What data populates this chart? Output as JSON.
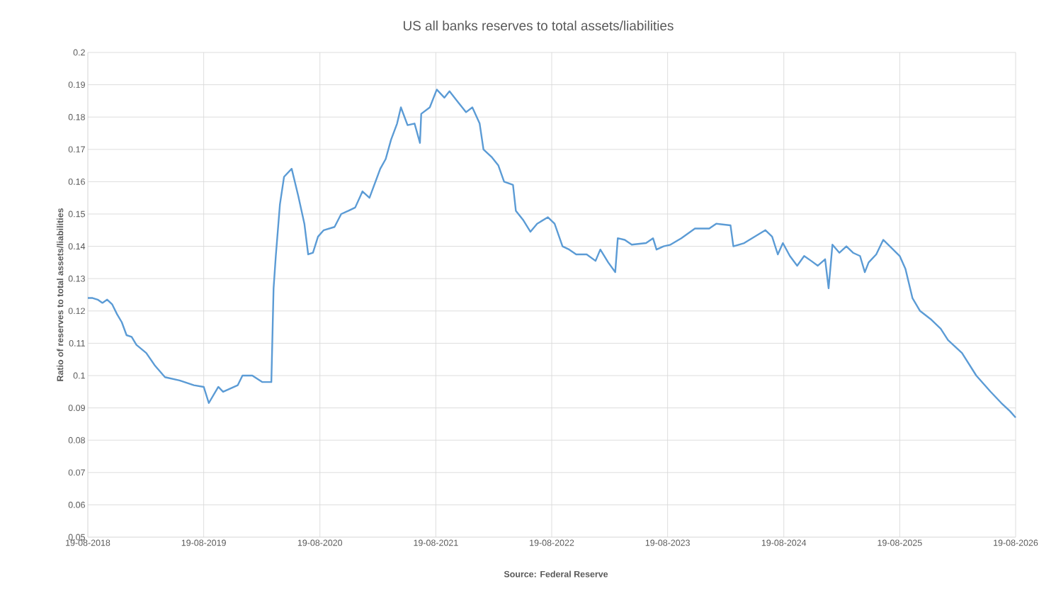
{
  "chart_data": {
    "type": "line",
    "title": "US all banks reserves to total assets/liabilities",
    "ylabel": "Ratio of reserves to total assets/liabilities",
    "annotations": [
      "Source: Federal Reserve"
    ],
    "x": [
      "2018-08-19",
      "2018-09-03",
      "2018-09-19",
      "2018-10-04",
      "2018-10-19",
      "2018-11-04",
      "2018-11-19",
      "2018-12-04",
      "2018-12-19",
      "2019-01-04",
      "2019-01-19",
      "2019-02-19",
      "2019-03-19",
      "2019-04-19",
      "2019-06-04",
      "2019-07-19",
      "2019-08-19",
      "2019-09-04",
      "2019-10-04",
      "2019-10-19",
      "2019-12-04",
      "2019-12-19",
      "2020-01-19",
      "2020-02-19",
      "2020-03-19",
      "2020-03-26",
      "2020-04-02",
      "2020-04-15",
      "2020-04-28",
      "2020-05-22",
      "2020-06-12",
      "2020-07-01",
      "2020-07-13",
      "2020-07-28",
      "2020-08-13",
      "2020-08-31",
      "2020-10-04",
      "2020-10-25",
      "2020-11-17",
      "2020-12-08",
      "2020-12-31",
      "2021-01-22",
      "2021-02-25",
      "2021-03-14",
      "2021-03-31",
      "2021-04-19",
      "2021-05-01",
      "2021-05-22",
      "2021-06-13",
      "2021-06-30",
      "2021-07-04",
      "2021-07-31",
      "2021-08-22",
      "2021-09-15",
      "2021-10-01",
      "2021-10-25",
      "2021-11-22",
      "2021-12-12",
      "2022-01-04",
      "2022-01-16",
      "2022-02-12",
      "2022-03-04",
      "2022-03-22",
      "2022-04-19",
      "2022-04-28",
      "2022-05-22",
      "2022-06-13",
      "2022-07-04",
      "2022-08-07",
      "2022-08-28",
      "2022-09-22",
      "2022-10-13",
      "2022-11-04",
      "2022-12-07",
      "2023-01-04",
      "2023-01-19",
      "2023-02-13",
      "2023-03-07",
      "2023-03-15",
      "2023-04-06",
      "2023-04-28",
      "2023-06-12",
      "2023-07-04",
      "2023-07-15",
      "2023-08-06",
      "2023-08-28",
      "2023-10-01",
      "2023-11-13",
      "2023-12-28",
      "2024-01-19",
      "2024-03-04",
      "2024-03-13",
      "2024-04-16",
      "2024-05-19",
      "2024-06-22",
      "2024-07-13",
      "2024-07-31",
      "2024-08-16",
      "2024-09-07",
      "2024-09-30",
      "2024-10-22",
      "2024-11-13",
      "2024-12-04",
      "2024-12-27",
      "2025-01-07",
      "2025-01-19",
      "2025-02-10",
      "2025-03-04",
      "2025-03-25",
      "2025-04-16",
      "2025-05-01",
      "2025-05-13",
      "2025-06-06",
      "2025-06-28",
      "2025-07-19",
      "2025-08-19",
      "2025-09-06",
      "2025-09-28",
      "2025-10-22",
      "2025-11-24",
      "2025-12-26",
      "2026-01-18",
      "2026-03-03",
      "2026-04-17",
      "2026-06-01",
      "2026-07-05",
      "2026-08-01",
      "2026-08-19"
    ],
    "series": [
      {
        "color": "#5b9bd5",
        "values": [
          0.124,
          0.124,
          0.1235,
          0.1225,
          0.1235,
          0.122,
          0.119,
          0.1165,
          0.1125,
          0.112,
          0.1095,
          0.107,
          0.103,
          0.0995,
          0.0985,
          0.097,
          0.0965,
          0.0915,
          0.0965,
          0.095,
          0.097,
          0.1,
          0.1,
          0.098,
          0.098,
          0.127,
          0.137,
          0.153,
          0.1615,
          0.164,
          0.1555,
          0.147,
          0.1375,
          0.138,
          0.143,
          0.145,
          0.146,
          0.15,
          0.151,
          0.152,
          0.157,
          0.155,
          0.164,
          0.167,
          0.173,
          0.178,
          0.183,
          0.1775,
          0.178,
          0.172,
          0.181,
          0.183,
          0.1885,
          0.186,
          0.188,
          0.185,
          0.1815,
          0.183,
          0.178,
          0.17,
          0.1675,
          0.165,
          0.16,
          0.159,
          0.151,
          0.148,
          0.1445,
          0.147,
          0.149,
          0.147,
          0.14,
          0.139,
          0.1375,
          0.1375,
          0.1355,
          0.139,
          0.135,
          0.132,
          0.1425,
          0.142,
          0.1405,
          0.141,
          0.1425,
          0.139,
          0.14,
          0.1405,
          0.1425,
          0.1455,
          0.1455,
          0.147,
          0.1465,
          0.14,
          0.141,
          0.143,
          0.145,
          0.143,
          0.1375,
          0.141,
          0.137,
          0.134,
          0.137,
          0.1355,
          0.134,
          0.136,
          0.127,
          0.1405,
          0.138,
          0.14,
          0.138,
          0.137,
          0.132,
          0.135,
          0.1375,
          0.142,
          0.14,
          0.137,
          0.133,
          0.124,
          0.12,
          0.1175,
          0.1145,
          0.111,
          0.107,
          0.1,
          0.095,
          0.0915,
          0.089,
          0.087
        ]
      }
    ],
    "xlim": [
      "2018-08-19",
      "2026-08-19"
    ],
    "xticks": [
      {
        "value": "2018-08-19",
        "label": "19-08-2018"
      },
      {
        "value": "2019-08-19",
        "label": "19-08-2019"
      },
      {
        "value": "2020-08-19",
        "label": "19-08-2020"
      },
      {
        "value": "2021-08-19",
        "label": "19-08-2021"
      },
      {
        "value": "2022-08-19",
        "label": "19-08-2022"
      },
      {
        "value": "2023-08-19",
        "label": "19-08-2023"
      },
      {
        "value": "2024-08-19",
        "label": "19-08-2024"
      },
      {
        "value": "2025-08-19",
        "label": "19-08-2025"
      },
      {
        "value": "2026-08-19",
        "label": "19-08-2026"
      }
    ],
    "ylim": [
      0.05,
      0.2
    ],
    "yticks": [
      0.05,
      0.06,
      0.07,
      0.08,
      0.09,
      0.1,
      0.11,
      0.12,
      0.13,
      0.14,
      0.15,
      0.16,
      0.17,
      0.18,
      0.19,
      0.2
    ],
    "grid": true,
    "marker": "none",
    "line_style": "solid"
  }
}
